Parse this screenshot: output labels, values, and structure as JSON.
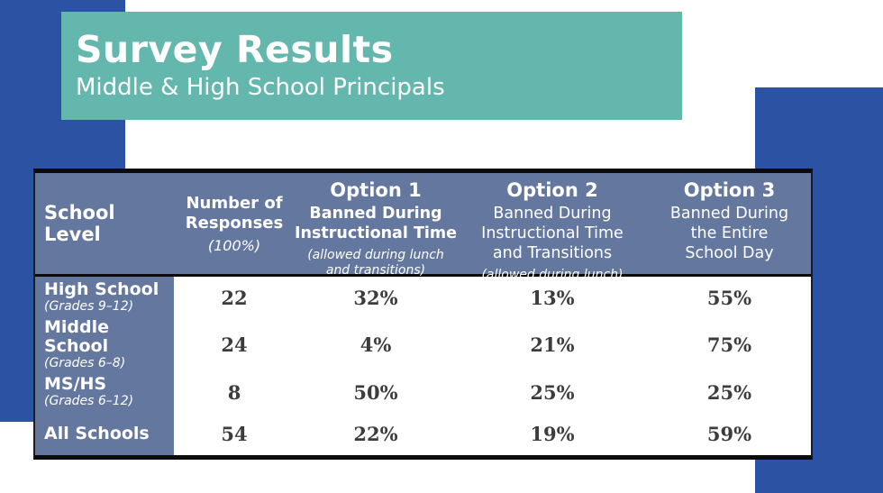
{
  "slide": {
    "title": "Survey Results",
    "subtitle": "Middle & High School Principals"
  },
  "colors": {
    "accent_blue": "#2b52a3",
    "banner_teal": "#64b7ac",
    "table_header_slate": "#64779f",
    "table_border_black": "#0b0b0b",
    "data_text": "#3c3c3c"
  },
  "table": {
    "columns": [
      {
        "label": "School Level"
      },
      {
        "label": "Number of\nResponses",
        "note": "(100%)"
      },
      {
        "option": "Option 1",
        "label": "Banned During\nInstructional Time",
        "note": "(allowed during lunch\nand transitions)"
      },
      {
        "option": "Option 2",
        "label": "Banned During\nInstructional Time\nand Transitions",
        "note": "(allowed during lunch)"
      },
      {
        "option": "Option 3",
        "label": "Banned During\nthe Entire\nSchool Day",
        "note": ""
      }
    ],
    "rows": [
      {
        "school": "High School",
        "grades": "(Grades 9–12)",
        "responses": "22",
        "option1": "32%",
        "option2": "13%",
        "option3": "55%"
      },
      {
        "school": "Middle School",
        "grades": "(Grades 6–8)",
        "responses": "24",
        "option1": "4%",
        "option2": "21%",
        "option3": "75%"
      },
      {
        "school": "MS/HS",
        "grades": "(Grades 6–12)",
        "responses": "8",
        "option1": "50%",
        "option2": "25%",
        "option3": "25%"
      },
      {
        "school": "All Schools",
        "grades": "",
        "responses": "54",
        "option1": "22%",
        "option2": "19%",
        "option3": "59%"
      }
    ]
  }
}
